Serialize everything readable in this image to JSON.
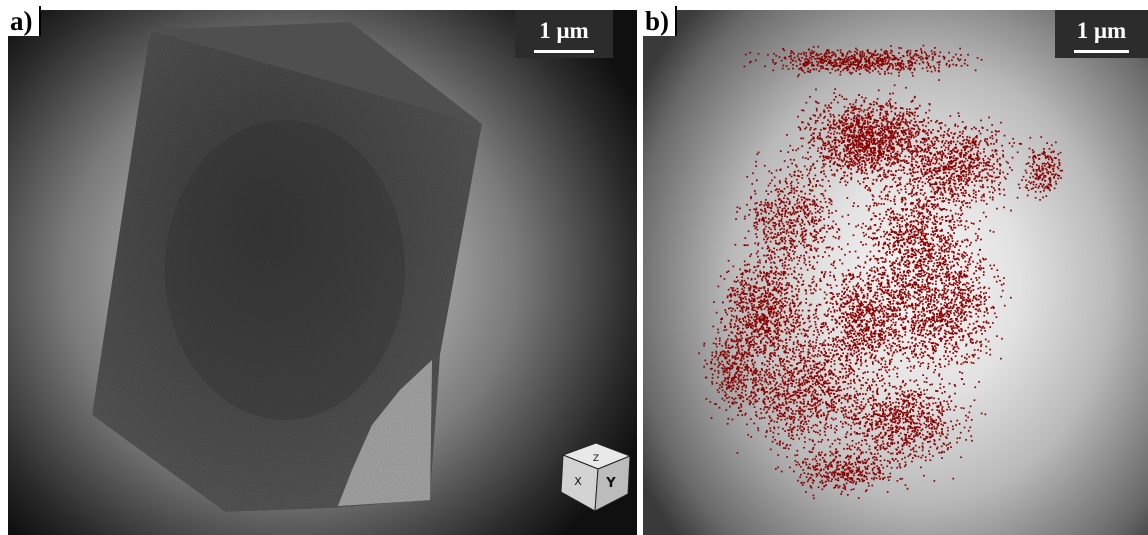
{
  "panels": {
    "a": {
      "label": "a)",
      "scale_bar": "1 μm",
      "content": "grey 3D reconstructed volume with orientation cube"
    },
    "b": {
      "label": "b)",
      "scale_bar": "1 μm",
      "content": "red point cloud"
    }
  },
  "orientation_cube": {
    "axis_glyphs": [
      "Z",
      "X",
      "Y"
    ]
  },
  "colors": {
    "points": "#8b0000",
    "volume": "#474747",
    "background_dark": "#141414",
    "scalebar_bg": "#2c2c2c"
  }
}
